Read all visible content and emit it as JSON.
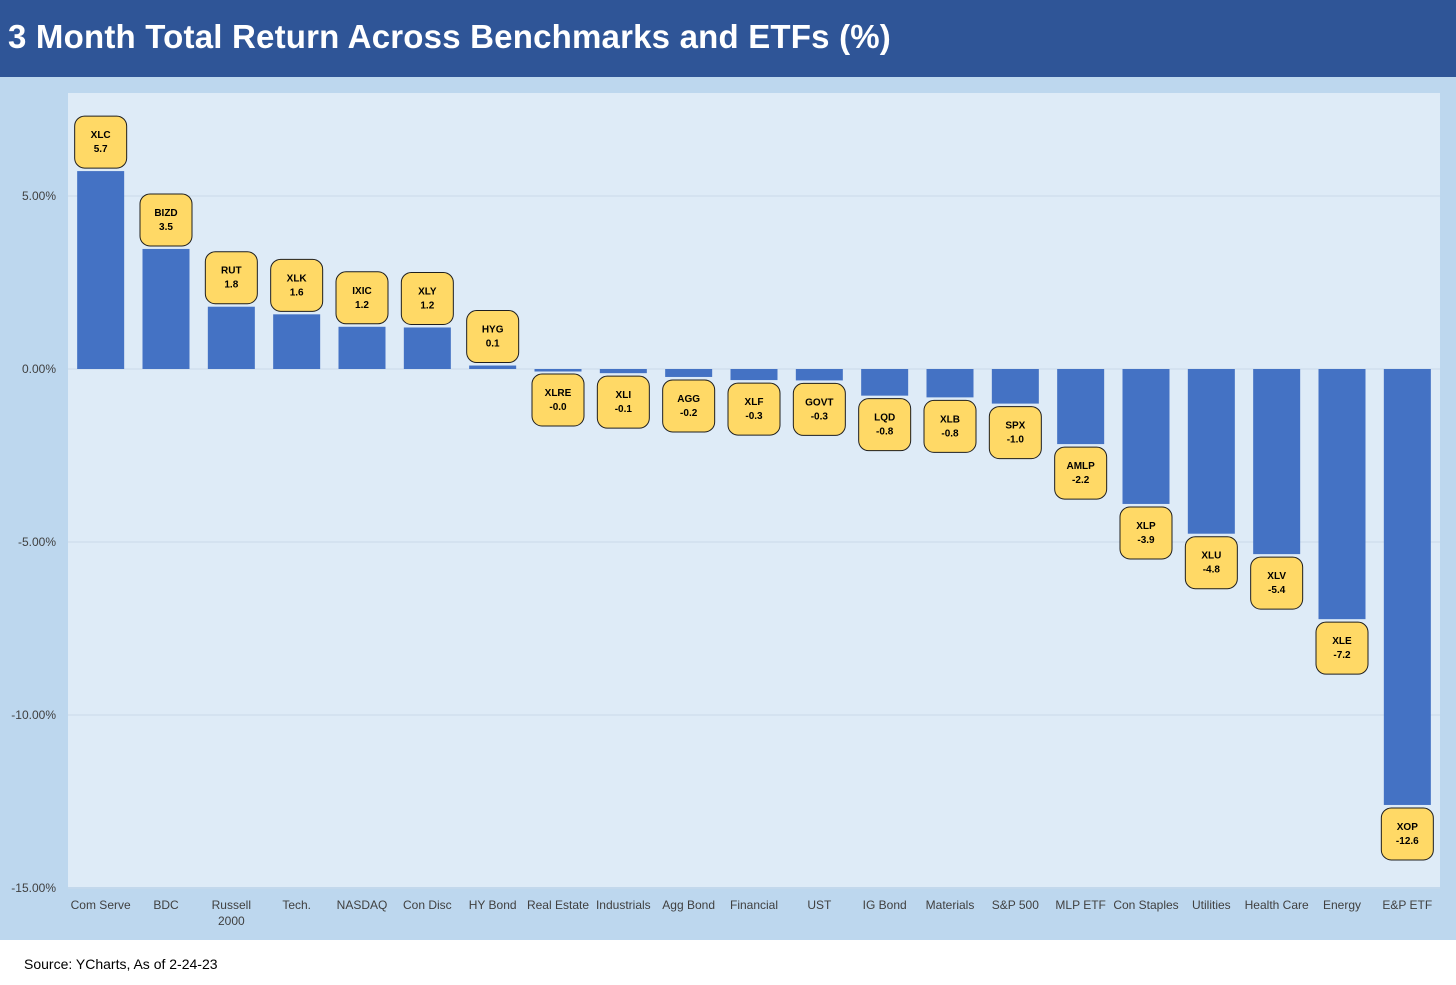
{
  "header": {
    "title": "3 Month Total Return Across Benchmarks and ETFs (%)"
  },
  "footer": {
    "source": "Source: YCharts, As of 2-24-23"
  },
  "colors": {
    "title_bar": "#2f5597",
    "panel": "#bdd7ee",
    "plot_area": "#deebf7",
    "bar": "#4472c4",
    "label_fill": "#ffd966",
    "label_border": "#1f1f1f",
    "gridline": "#c9d9ea"
  },
  "chart_data": {
    "type": "bar",
    "title": "3 Month Total Return Across Benchmarks and ETFs (%)",
    "xlabel": "",
    "ylabel": "",
    "ylim": [
      -15,
      7.5
    ],
    "yticks": [
      5,
      0,
      -5,
      -10,
      -15
    ],
    "ytick_labels": [
      "5.00%",
      "0.00%",
      "-5.00%",
      "-10.00%",
      "-15.00%"
    ],
    "grid": true,
    "legend": "none",
    "categories": [
      [
        "Com Serve"
      ],
      [
        "BDC"
      ],
      [
        "Russell",
        "2000"
      ],
      [
        "Tech."
      ],
      [
        "NASDAQ"
      ],
      [
        "Con Disc"
      ],
      [
        "HY Bond"
      ],
      [
        "Real Estate"
      ],
      [
        "Industrials"
      ],
      [
        "Agg Bond"
      ],
      [
        "Financial"
      ],
      [
        "UST"
      ],
      [
        "IG Bond"
      ],
      [
        "Materials"
      ],
      [
        "S&P 500"
      ],
      [
        "MLP ETF"
      ],
      [
        "Con Staples"
      ],
      [
        "Utilities"
      ],
      [
        "Health Care"
      ],
      [
        "Energy"
      ],
      [
        "E&P ETF"
      ]
    ],
    "tickers": [
      "XLC",
      "BIZD",
      "RUT",
      "XLK",
      "IXIC",
      "XLY",
      "HYG",
      "XLRE",
      "XLI",
      "AGG",
      "XLF",
      "GOVT",
      "LQD",
      "XLB",
      "SPX",
      "AMLP",
      "XLP",
      "XLU",
      "XLV",
      "XLE",
      "XOP"
    ],
    "value_labels": [
      "5.7",
      "3.5",
      "1.8",
      "1.6",
      "1.2",
      "1.2",
      "0.1",
      "-0.0",
      "-0.1",
      "-0.2",
      "-0.3",
      "-0.3",
      "-0.8",
      "-0.8",
      "-1.0",
      "-2.2",
      "-3.9",
      "-4.8",
      "-5.4",
      "-7.2",
      "-12.6"
    ],
    "values": [
      5.72,
      3.47,
      1.8,
      1.58,
      1.22,
      1.2,
      0.1,
      -0.01,
      -0.12,
      -0.23,
      -0.32,
      -0.33,
      -0.77,
      -0.82,
      -1.0,
      -2.17,
      -3.9,
      -4.76,
      -5.35,
      -7.23,
      -12.6
    ]
  }
}
